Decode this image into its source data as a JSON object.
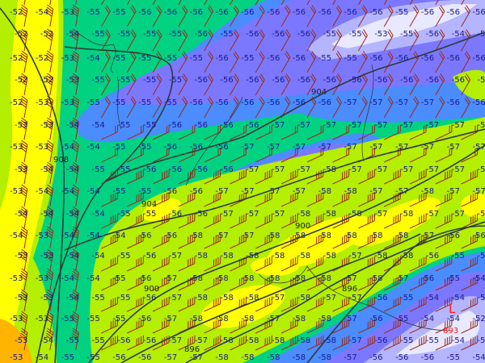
{
  "map": {
    "colors": {
      "t_-59_orange": "#ffb400",
      "t_-58_yellow": "#ffff00",
      "t_-57_yellowgreen": "#b4ee00",
      "t_-56_green": "#00d282",
      "t_-55_blue": "#4b8cff",
      "t_-54_purple": "#7b78ff",
      "t_-53_lavender": "#b4b4ff",
      "t_-52_pale": "#e8e8ff",
      "contour": "#2e3a36",
      "barb": "#9a2a1a",
      "low_marker": "#ff1a1a"
    },
    "temperature_rows": [
      [
        "-52",
        "-54",
        "-53",
        "-55",
        "-55",
        "-56",
        "-56",
        "-56",
        "-56",
        "-56",
        "-56",
        "-56",
        "-56",
        "-56",
        "-56",
        "-55",
        "-56",
        "-56",
        "-56"
      ],
      [
        "-52",
        "-52",
        "-54",
        "-55",
        "-55",
        "-55",
        "-55",
        "-56",
        "-55",
        "-56",
        "-56",
        "-56",
        "-55",
        "-55",
        "-53",
        "-55",
        "-56",
        "-54",
        "-54"
      ],
      [
        "-52",
        "-52",
        "-53",
        "-54",
        "-55",
        "-55",
        "-55",
        "-55",
        "-56",
        "-55",
        "-56",
        "-56",
        "-55",
        "-55",
        "-56",
        "-56",
        "-56",
        "-56",
        "-56"
      ],
      [
        "-52",
        "-52",
        "-53",
        "-55",
        "-55",
        "-55",
        "-55",
        "-56",
        "-56",
        "-56",
        "-56",
        "-56",
        "-56",
        "-56",
        "-56",
        "-56",
        "-56",
        "-56",
        "-56"
      ],
      [
        "-52",
        "-53",
        "-53",
        "-55",
        "-55",
        "-55",
        "-55",
        "-56",
        "-56",
        "-56",
        "-56",
        "-56",
        "-56",
        "-57",
        "-57",
        "-57",
        "-57",
        "-56",
        "-56"
      ],
      [
        "-53",
        "-53",
        "-54",
        "-54",
        "-55",
        "-55",
        "-56",
        "-56",
        "-56",
        "-56",
        "-57",
        "-57",
        "-57",
        "-57",
        "-57",
        "-57",
        "-57",
        "-57",
        "-57"
      ],
      [
        "-53",
        "-53",
        "-54",
        "-54",
        "-55",
        "-55",
        "-56",
        "-56",
        "-56",
        "-57",
        "-57",
        "-57",
        "-57",
        "-57",
        "-57",
        "-57",
        "-57",
        "-57",
        "-57"
      ],
      [
        "-53",
        "-54",
        "-54",
        "-55",
        "-55",
        "-56",
        "-56",
        "-56",
        "-56",
        "-57",
        "-57",
        "-57",
        "-58",
        "-57",
        "-57",
        "-57",
        "-57",
        "-57",
        "-57"
      ],
      [
        "-53",
        "-54",
        "-54",
        "-54",
        "-55",
        "-55",
        "-56",
        "-56",
        "-57",
        "-57",
        "-57",
        "-57",
        "-58",
        "-58",
        "-57",
        "-57",
        "-58",
        "-57",
        "-57"
      ],
      [
        "-54",
        "-54",
        "-54",
        "-54",
        "-55",
        "-55",
        "-56",
        "-56",
        "-57",
        "-57",
        "-57",
        "-58",
        "-58",
        "-58",
        "-57",
        "-58",
        "-57",
        "-57",
        "-57"
      ],
      [
        "-54",
        "-53",
        "-54",
        "-54",
        "-54",
        "-56",
        "-56",
        "-58",
        "-57",
        "-57",
        "-58",
        "-58",
        "-58",
        "-58",
        "-58",
        "-58",
        "-57",
        "-56",
        "-56"
      ],
      [
        "-53",
        "-53",
        "-54",
        "-54",
        "-55",
        "-56",
        "-57",
        "-58",
        "-58",
        "-58",
        "-58",
        "-58",
        "-58",
        "-57",
        "-58",
        "-58",
        "-56",
        "-55",
        "-54"
      ],
      [
        "-53",
        "-53",
        "-54",
        "-54",
        "-55",
        "-56",
        "-57",
        "-58",
        "-58",
        "-58",
        "-58",
        "-58",
        "-58",
        "-57",
        "-58",
        "-57",
        "-56",
        "-55",
        "-54"
      ],
      [
        "-53",
        "-53",
        "-54",
        "-55",
        "-55",
        "-56",
        "-57",
        "-58",
        "-58",
        "-58",
        "-57",
        "-58",
        "-57",
        "-57",
        "-56",
        "-55",
        "-54",
        "-54",
        "-53"
      ],
      [
        "-53",
        "-53",
        "-55",
        "-55",
        "-55",
        "-56",
        "-57",
        "-58",
        "-58",
        "-58",
        "-57",
        "-58",
        "-58",
        "-57",
        "-56",
        "-55",
        "-54",
        "-54",
        "-52"
      ],
      [
        "-53",
        "-54",
        "-55",
        "-55",
        "-56",
        "-56",
        "-57",
        "-57",
        "-58",
        "-58",
        "-58",
        "-58",
        "-58",
        "-57",
        "-56",
        "-55",
        "-55",
        "-54",
        "-54"
      ],
      [
        "-53",
        "-54",
        "-55",
        "-55",
        "-56",
        "-56",
        "-57",
        "-57",
        "-58",
        "-58",
        "-58",
        "-58",
        "-58",
        "-57",
        "-56",
        "-56",
        "-56",
        "-55",
        "-54"
      ]
    ],
    "contour_labels": [
      "908",
      "904",
      "904",
      "900",
      "900",
      "896",
      "896"
    ],
    "low": {
      "symbol": "L",
      "value": "893"
    }
  }
}
